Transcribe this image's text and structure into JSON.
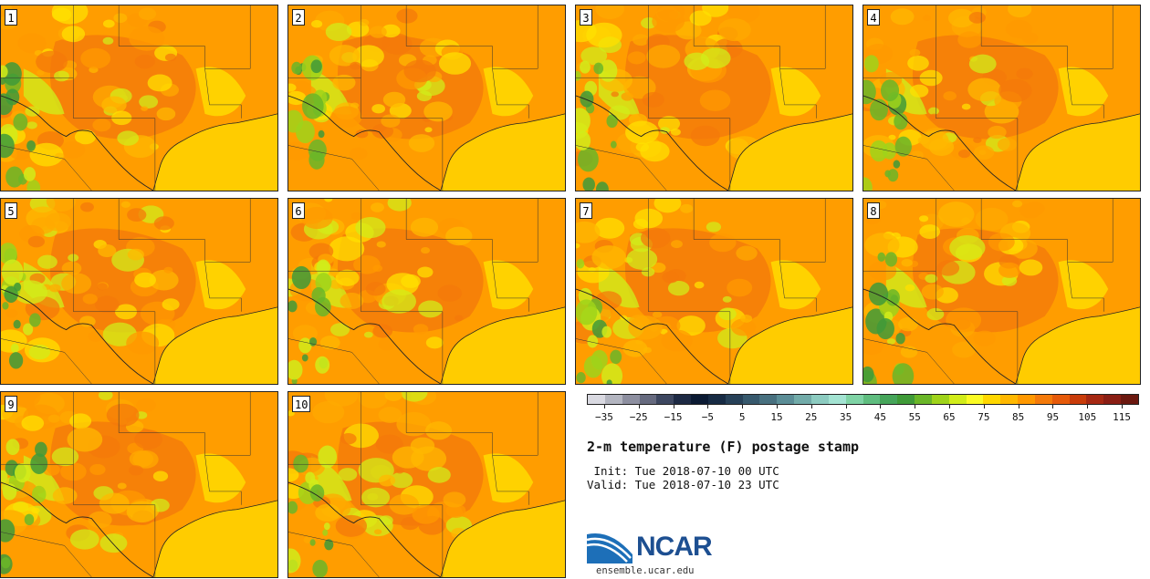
{
  "panels": [
    {
      "label": "1"
    },
    {
      "label": "2"
    },
    {
      "label": "3"
    },
    {
      "label": "4"
    },
    {
      "label": "5"
    },
    {
      "label": "6"
    },
    {
      "label": "7"
    },
    {
      "label": "8"
    },
    {
      "label": "9"
    },
    {
      "label": "10"
    }
  ],
  "colorbar": {
    "colors": [
      "#d9d9e1",
      "#b3b5c0",
      "#8d8fa0",
      "#666a7f",
      "#3d4760",
      "#1d2a44",
      "#0b1a33",
      "#172b44",
      "#274158",
      "#37596d",
      "#48707f",
      "#5b8d96",
      "#72aba9",
      "#8ccbc0",
      "#a3e3d2",
      "#7fd3a5",
      "#5fbd7f",
      "#46a55a",
      "#3f9a38",
      "#6ab628",
      "#9fd31a",
      "#d1ec1a",
      "#fbfb24",
      "#ffd700",
      "#ffb800",
      "#ff9800",
      "#f47a0a",
      "#e65a0a",
      "#c93c0a",
      "#a62812",
      "#8a1e14",
      "#6b180f"
    ],
    "tick_labels": [
      "−35",
      "−25",
      "−15",
      "−5",
      "5",
      "15",
      "25",
      "35",
      "45",
      "55",
      "65",
      "75",
      "85",
      "95",
      "105",
      "115"
    ],
    "min": -40,
    "max": 120
  },
  "title": "2-m temperature (F) postage stamp",
  "init_line": " Init: Tue 2018-07-10 00 UTC",
  "valid_line": "Valid: Tue 2018-07-10 23 UTC",
  "logo": {
    "name": "NCAR",
    "url": "ensemble.ucar.edu"
  }
}
